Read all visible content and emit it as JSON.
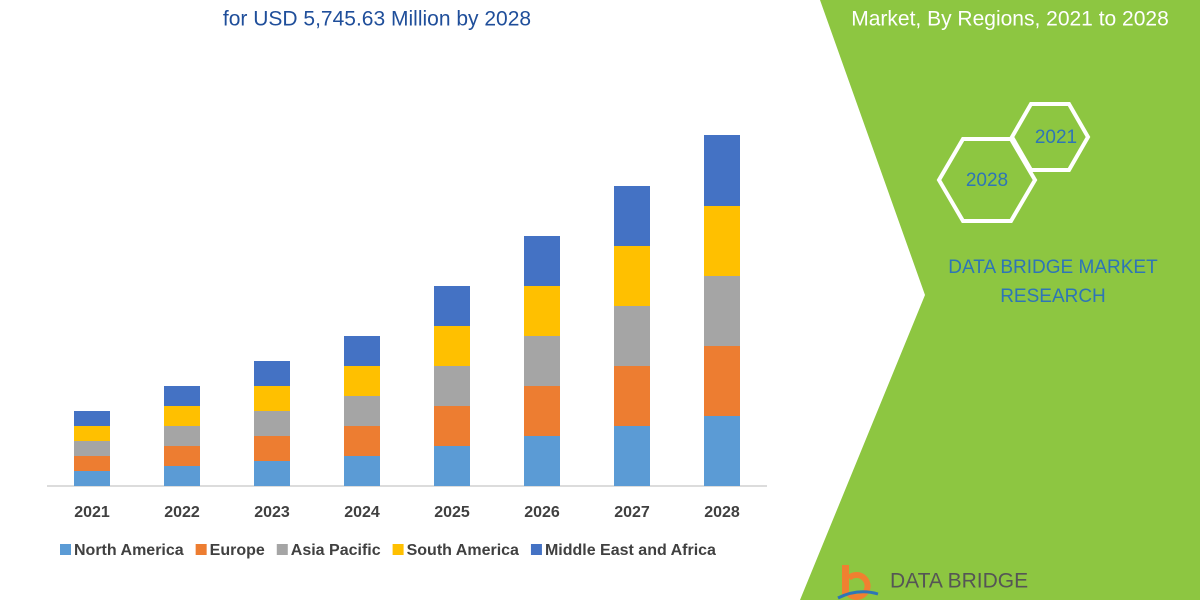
{
  "chart_data": {
    "type": "stacked-bar",
    "title": "for USD 5,745.63 Million by 2028",
    "categories": [
      "2021",
      "2022",
      "2023",
      "2024",
      "2025",
      "2026",
      "2027",
      "2028"
    ],
    "series": [
      {
        "name": "North America",
        "color": "#5b9bd5",
        "values": [
          15,
          20,
          25,
          30,
          40,
          50,
          60,
          70
        ]
      },
      {
        "name": "Europe",
        "color": "#ed7d31",
        "values": [
          15,
          20,
          25,
          30,
          40,
          50,
          60,
          70
        ]
      },
      {
        "name": "Asia Pacific",
        "color": "#a5a5a5",
        "values": [
          15,
          20,
          25,
          30,
          40,
          50,
          60,
          70
        ]
      },
      {
        "name": "South America",
        "color": "#ffc000",
        "values": [
          15,
          20,
          25,
          30,
          40,
          50,
          60,
          70
        ]
      },
      {
        "name": "Middle East and Africa",
        "color": "#4472c4",
        "values": [
          15,
          20,
          25,
          30,
          40,
          50,
          60,
          71
        ]
      }
    ],
    "ylim": [
      0,
      351
    ],
    "legend": "bottom"
  },
  "panel": {
    "subtitle": "Market, By Regions, 2021 to 2028",
    "hexagons": [
      "2021",
      "2028"
    ],
    "brand": [
      "DATA BRIDGE MARKET",
      "RESEARCH"
    ],
    "logo": "DATA BRIDGE"
  }
}
